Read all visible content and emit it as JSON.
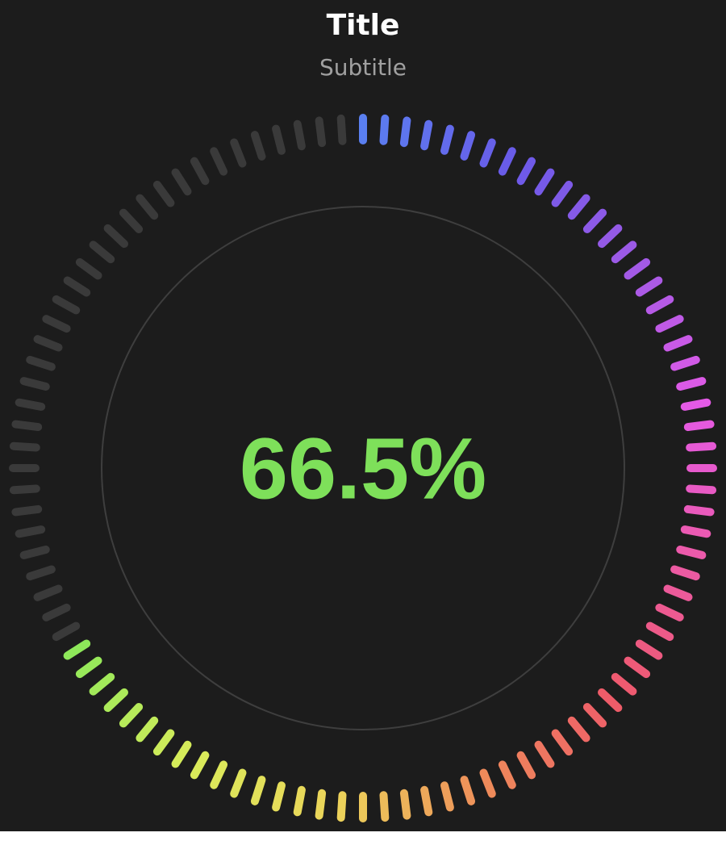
{
  "title": "Title",
  "subtitle": "Subtitle",
  "chart_data": {
    "type": "radial-gauge",
    "value": 66.5,
    "value_label": "66.5%",
    "min": 0,
    "max": 100,
    "tick_count": 100,
    "colors": {
      "background": "#1c1c1c",
      "inactive_tick": "#3a3a3a",
      "inner_ring": "#3e3e3e",
      "value_text": "#7ee05a",
      "gradient_stops": [
        "#5a7ff0",
        "#6a5ae8",
        "#a05ae6",
        "#e45ae6",
        "#ec5aa8",
        "#ee5a6a",
        "#ee8a5a",
        "#ecd45a",
        "#d8ec5a",
        "#8ee85a"
      ]
    }
  }
}
